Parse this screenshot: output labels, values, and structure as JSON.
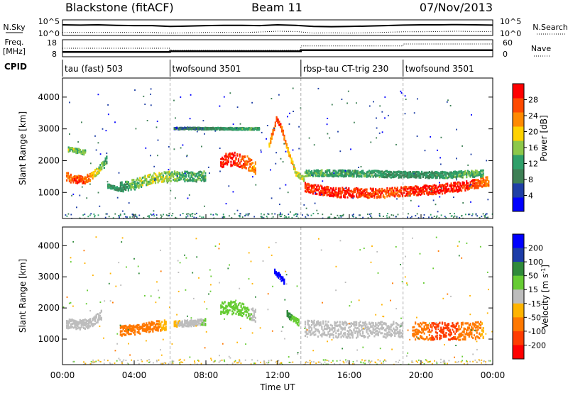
{
  "header": {
    "station": "Blackstone (fitACF)",
    "beam": "Beam 11",
    "date": "07/Nov/2013"
  },
  "chart_data": [
    {
      "type": "line",
      "panel": "noise",
      "left_label": "N.Sky",
      "right_label": "N.Search",
      "left_ticks": [
        "10^5",
        "10^0"
      ],
      "right_ticks": [
        "10^5",
        "10^0"
      ],
      "x": [
        0,
        1,
        2,
        3,
        4,
        5,
        6,
        7,
        8,
        9,
        10,
        11,
        12,
        13,
        14,
        15,
        16,
        17,
        18,
        19,
        20,
        21,
        22,
        23,
        24
      ],
      "series": [
        {
          "name": "N.Sky",
          "values": [
            3.6,
            3.5,
            3.6,
            3.4,
            3.3,
            3.3,
            3.0,
            3.1,
            3.3,
            3.4,
            3.4,
            3.3,
            3.6,
            3.4,
            3.0,
            2.9,
            3.0,
            3.1,
            3.3,
            3.5,
            3.6,
            3.6,
            3.7,
            3.6,
            3.5
          ]
        },
        {
          "name": "N.Search",
          "values": [
            0.6,
            0.6,
            0.6,
            0.6,
            0.6,
            0.6,
            0.4,
            0.5,
            0.6,
            0.6,
            0.6,
            0.8,
            1.1,
            1.0,
            0.4,
            0.5,
            0.4,
            0.5,
            0.7,
            0.9,
            0.9,
            1.0,
            1.1,
            1.0,
            1.0
          ]
        }
      ]
    },
    {
      "type": "line",
      "panel": "frequency",
      "left_label_line1": "Freq.",
      "left_label_line2": "[MHz]",
      "right_label": "Nave",
      "left_ticks": [
        "18",
        "8"
      ],
      "right_ticks": [
        "60",
        "0"
      ],
      "x": [
        0,
        6,
        6,
        13.3,
        13.3,
        19,
        19,
        24
      ],
      "series": [
        {
          "name": "Freq.",
          "values": [
            10.4,
            10.4,
            10.9,
            10.9,
            11.6,
            11.6,
            11.6,
            11.6
          ]
        },
        {
          "name": "Nave",
          "values": [
            30,
            30,
            22,
            22,
            40,
            40,
            48,
            48
          ]
        }
      ]
    },
    {
      "type": "table",
      "panel": "cpid",
      "label": "CPID",
      "segments": [
        {
          "start": 0,
          "text": "tau (fast) 503"
        },
        {
          "start": 6,
          "text": "twofsound 3501"
        },
        {
          "start": 13.3,
          "text": "rbsp-tau CT-trig 230"
        },
        {
          "start": 19,
          "text": "twofsound 3501"
        }
      ]
    },
    {
      "type": "heatmap",
      "panel": "power",
      "ylabel": "Slant Range [km]",
      "ylim": [
        180,
        4600
      ],
      "yticks": [
        "1000",
        "2000",
        "3000",
        "4000"
      ],
      "colorbar_label": "Power [dB]",
      "colorbar_ticks": [
        "4",
        "8",
        "12",
        "16",
        "20",
        "24",
        "28"
      ],
      "colorbar_range": [
        0,
        32
      ],
      "bands": [
        {
          "x": [
            0.2,
            0.5,
            1.0,
            1.5,
            2.0,
            2.5
          ],
          "y": [
            1500,
            1420,
            1380,
            1450,
            1700,
            2050
          ],
          "width": 260,
          "values": [
            24,
            26,
            28,
            24,
            16,
            12
          ]
        },
        {
          "x": [
            0.3,
            0.8,
            1.3
          ],
          "y": [
            2350,
            2300,
            2250
          ],
          "width": 140,
          "values": [
            16,
            15,
            14
          ]
        },
        {
          "x": [
            2.5,
            3.0,
            3.3
          ],
          "y": [
            1200,
            1120,
            1050
          ],
          "width": 120,
          "values": [
            12,
            10,
            8
          ]
        },
        {
          "x": [
            3.2,
            4.0,
            5.0,
            6.0,
            7.0,
            8.0
          ],
          "y": [
            1180,
            1250,
            1450,
            1500,
            1500,
            1500
          ],
          "width": 320,
          "values": [
            10,
            14,
            18,
            16,
            12,
            12
          ]
        },
        {
          "x": [
            6.2,
            7.0,
            8.0,
            9.0,
            10.0,
            11.0
          ],
          "y": [
            3010,
            3010,
            3010,
            3000,
            3000,
            3000
          ],
          "width": 60,
          "values": [
            6,
            8,
            10,
            10,
            12,
            12
          ]
        },
        {
          "x": [
            8.8,
            9.5,
            10.2,
            10.8
          ],
          "y": [
            2000,
            2050,
            1950,
            1750
          ],
          "width": 420,
          "values": [
            28,
            30,
            26,
            22
          ]
        },
        {
          "x": [
            11.5,
            11.9,
            12.2,
            12.6,
            13.0,
            13.5
          ],
          "y": [
            2500,
            3300,
            3000,
            2200,
            1600,
            1400
          ],
          "width": 160,
          "values": [
            20,
            28,
            26,
            22,
            18,
            16
          ]
        },
        {
          "x": [
            13.5,
            15.0,
            16.5,
            18.0,
            19.5,
            21.0,
            22.5,
            23.8
          ],
          "y": [
            1150,
            1000,
            980,
            980,
            1050,
            1100,
            1200,
            1350
          ],
          "width": 300,
          "values": [
            28,
            30,
            28,
            26,
            28,
            30,
            28,
            24
          ]
        },
        {
          "x": [
            13.5,
            15.5,
            17.5,
            19.5,
            21.5,
            23.5
          ],
          "y": [
            1600,
            1600,
            1580,
            1550,
            1550,
            1600
          ],
          "width": 200,
          "values": [
            14,
            12,
            12,
            10,
            12,
            14
          ]
        }
      ]
    },
    {
      "type": "heatmap",
      "panel": "velocity",
      "ylabel": "Slant Range [km]",
      "ylim": [
        180,
        4600
      ],
      "yticks": [
        "1000",
        "2000",
        "3000",
        "4000"
      ],
      "xlabel": "Time UT",
      "xlim": [
        0,
        24
      ],
      "xticks": [
        "00:00",
        "04:00",
        "08:00",
        "12:00",
        "16:00",
        "20:00",
        "00:00"
      ],
      "colorbar_label": "Velocity [m s^-1]",
      "colorbar_ticks": [
        "200",
        "100",
        "50",
        "15",
        "-15",
        "-50",
        "-100",
        "-200"
      ],
      "bands": [
        {
          "x": [
            0.2,
            0.8,
            1.5,
            2.2
          ],
          "y": [
            1500,
            1450,
            1500,
            1800
          ],
          "width": 300,
          "values": [
            0,
            0,
            0,
            -10
          ]
        },
        {
          "x": [
            3.2,
            4.0,
            5.0,
            5.8
          ],
          "y": [
            1250,
            1300,
            1400,
            1450
          ],
          "width": 320,
          "values": [
            -70,
            -80,
            -60,
            -40
          ]
        },
        {
          "x": [
            6.2,
            7.0,
            8.0
          ],
          "y": [
            1500,
            1500,
            1550
          ],
          "width": 200,
          "values": [
            -20,
            0,
            20
          ]
        },
        {
          "x": [
            8.8,
            9.5,
            10.2,
            10.8
          ],
          "y": [
            2000,
            2000,
            1900,
            1750
          ],
          "width": 420,
          "values": [
            40,
            30,
            20,
            10
          ]
        },
        {
          "x": [
            11.8,
            12.1,
            12.4
          ],
          "y": [
            3200,
            3000,
            2800
          ],
          "width": 180,
          "values": [
            220,
            200,
            180
          ]
        },
        {
          "x": [
            12.5,
            13.2
          ],
          "y": [
            1800,
            1500
          ],
          "width": 200,
          "values": [
            60,
            30
          ]
        },
        {
          "x": [
            13.5,
            15.0,
            16.5,
            18.0,
            19.0
          ],
          "y": [
            1350,
            1300,
            1300,
            1300,
            1300
          ],
          "width": 520,
          "values": [
            0,
            0,
            0,
            0,
            0
          ]
        },
        {
          "x": [
            19.5,
            21.0,
            22.5,
            23.5
          ],
          "y": [
            1250,
            1250,
            1250,
            1300
          ],
          "width": 560,
          "values": [
            -60,
            -120,
            -90,
            -40
          ]
        }
      ]
    }
  ]
}
